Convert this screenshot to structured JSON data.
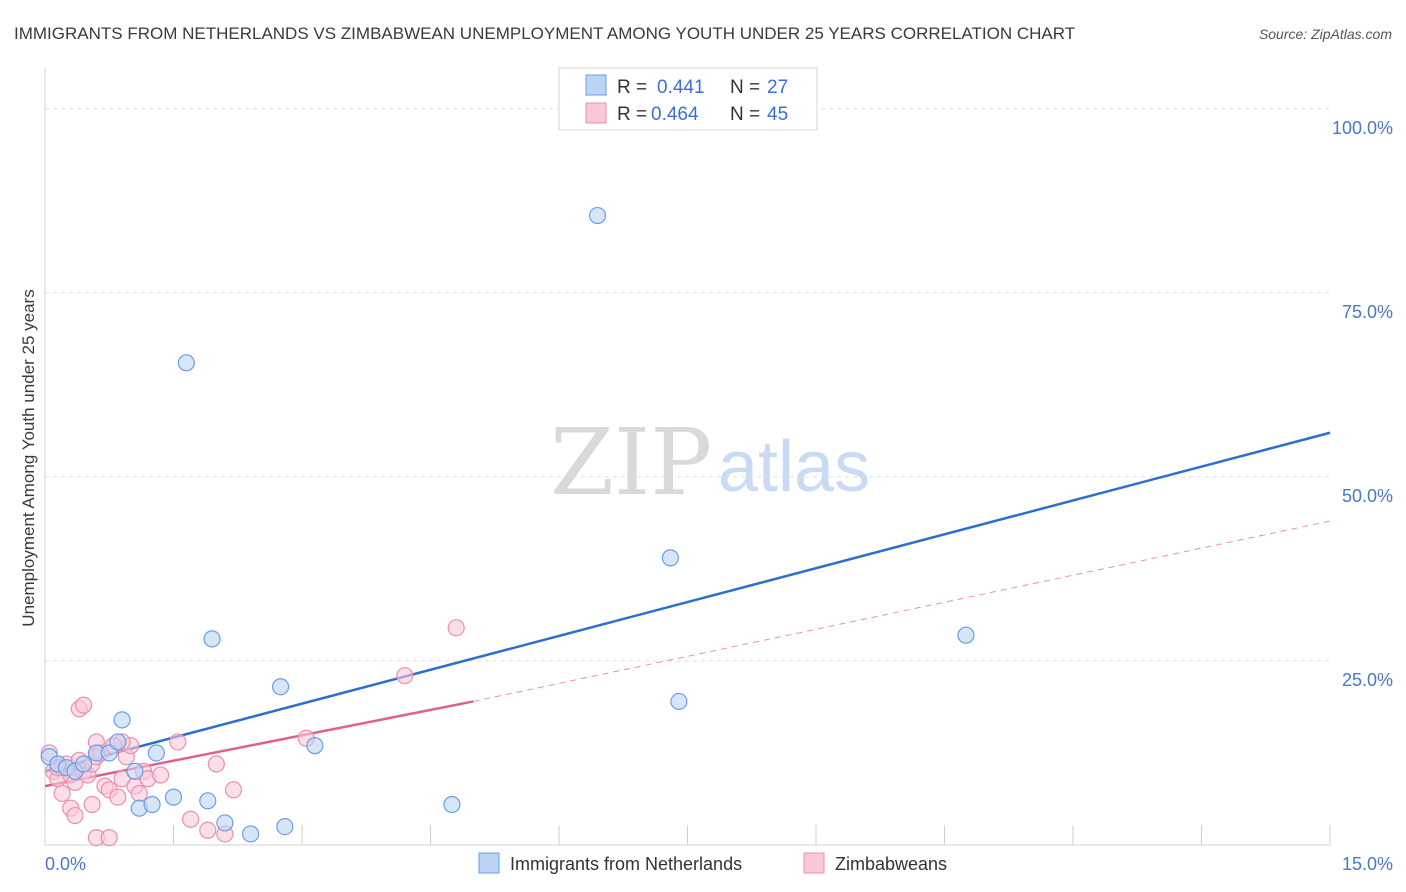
{
  "chart_data": {
    "type": "scatter",
    "title": "IMMIGRANTS FROM NETHERLANDS VS ZIMBABWEAN UNEMPLOYMENT AMONG YOUTH UNDER 25 YEARS CORRELATION CHART",
    "source": "Source: ZipAtlas.com",
    "xlabel": "",
    "ylabel": "Unemployment Among Youth under 25 years",
    "xlim": [
      0,
      15
    ],
    "ylim": [
      0,
      105
    ],
    "x_tick_labels": [
      {
        "value": 0,
        "label": "0.0%"
      },
      {
        "value": 15,
        "label": "15.0%"
      }
    ],
    "y_tick_labels": [
      {
        "value": 25,
        "label": "25.0%"
      },
      {
        "value": 50,
        "label": "50.0%"
      },
      {
        "value": 75,
        "label": "75.0%"
      },
      {
        "value": 100,
        "label": "100.0%"
      }
    ],
    "grid": true,
    "watermark": {
      "part1": "ZIP",
      "part2": "atlas"
    },
    "legend": {
      "position": "top-center",
      "entries": [
        {
          "series": "Immigrants from Netherlands",
          "r_label": "R =",
          "r_value": "0.441",
          "n_label": "N =",
          "n_value": "27"
        },
        {
          "series": "Zimbabweans",
          "r_label": "R =",
          "r_value": "0.464",
          "n_label": "N =",
          "n_value": "45"
        }
      ]
    },
    "series": [
      {
        "name": "Immigrants from Netherlands",
        "color": "#6a9ee6",
        "fill": "#bcd3f3",
        "line_color": "#2b6fcf",
        "trend": {
          "x0": 0,
          "y0": 10.0,
          "x1": 15,
          "y1": 56.0,
          "dashed_to": null
        },
        "points": [
          [
            0.05,
            12.0
          ],
          [
            0.15,
            11.0
          ],
          [
            0.25,
            10.5
          ],
          [
            0.35,
            10.0
          ],
          [
            0.45,
            11.0
          ],
          [
            0.6,
            12.5
          ],
          [
            0.75,
            12.5
          ],
          [
            0.85,
            14.0
          ],
          [
            0.9,
            17.0
          ],
          [
            1.05,
            10.0
          ],
          [
            1.3,
            12.5
          ],
          [
            1.65,
            65.5
          ],
          [
            1.95,
            28.0
          ],
          [
            1.1,
            5.0
          ],
          [
            1.25,
            5.5
          ],
          [
            1.5,
            6.5
          ],
          [
            1.9,
            6.0
          ],
          [
            2.1,
            3.0
          ],
          [
            2.4,
            1.5
          ],
          [
            2.8,
            2.5
          ],
          [
            2.75,
            21.5
          ],
          [
            3.15,
            13.5
          ],
          [
            4.75,
            5.5
          ],
          [
            6.45,
            85.5
          ],
          [
            7.3,
            39.0
          ],
          [
            7.4,
            19.5
          ],
          [
            10.75,
            28.5
          ]
        ]
      },
      {
        "name": "Zimbabweans",
        "color": "#ec8fb0",
        "fill": "#f8c8d8",
        "line_color": "#e0608c",
        "trend": {
          "x0": 0,
          "y0": 8.0,
          "x1": 5.0,
          "y1": 19.5,
          "dash_x1": 15,
          "dash_y1": 44.0
        },
        "points": [
          [
            0.05,
            12.5
          ],
          [
            0.1,
            10.0
          ],
          [
            0.15,
            9.0
          ],
          [
            0.2,
            10.5
          ],
          [
            0.25,
            11.0
          ],
          [
            0.3,
            9.5
          ],
          [
            0.35,
            8.5
          ],
          [
            0.4,
            11.5
          ],
          [
            0.45,
            10.0
          ],
          [
            0.5,
            9.5
          ],
          [
            0.55,
            11.0
          ],
          [
            0.6,
            12.0
          ],
          [
            0.2,
            7.0
          ],
          [
            0.3,
            5.0
          ],
          [
            0.35,
            4.0
          ],
          [
            0.4,
            18.5
          ],
          [
            0.45,
            19.0
          ],
          [
            0.55,
            5.5
          ],
          [
            0.6,
            14.0
          ],
          [
            0.65,
            12.5
          ],
          [
            0.7,
            8.0
          ],
          [
            0.75,
            7.5
          ],
          [
            0.85,
            6.5
          ],
          [
            0.9,
            9.0
          ],
          [
            0.95,
            12.0
          ],
          [
            1.0,
            13.5
          ],
          [
            1.05,
            8.0
          ],
          [
            1.1,
            7.0
          ],
          [
            1.15,
            10.0
          ],
          [
            1.2,
            9.0
          ],
          [
            1.55,
            14.0
          ],
          [
            1.7,
            3.5
          ],
          [
            1.9,
            2.0
          ],
          [
            2.0,
            11.0
          ],
          [
            2.1,
            1.5
          ],
          [
            2.2,
            7.5
          ],
          [
            0.6,
            1.0
          ],
          [
            0.75,
            1.0
          ],
          [
            3.05,
            14.5
          ],
          [
            4.2,
            23.0
          ],
          [
            4.8,
            29.5
          ],
          [
            1.35,
            9.5
          ],
          [
            0.9,
            14.0
          ],
          [
            0.8,
            13.5
          ],
          [
            0.15,
            10.5
          ]
        ]
      }
    ]
  }
}
